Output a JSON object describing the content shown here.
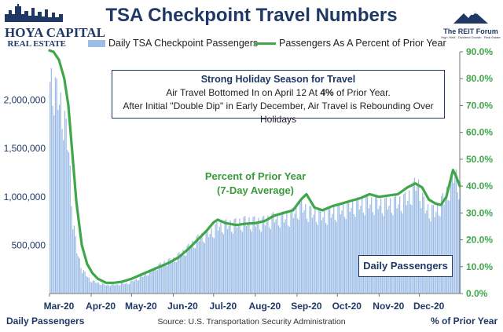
{
  "title": "TSA Checkpoint Travel Numbers",
  "logos": {
    "left_line1": "HOYA CAPITAL",
    "left_line2": "REAL ESTATE",
    "right_name": "The REIT Forum",
    "right_tagline": "High Yield · Dividend Growth · Real Estate"
  },
  "annotation": {
    "heading": "Strong Holiday Season for Travel",
    "line1_pre": "Air Travel Bottomed In on April 12 At ",
    "line1_bold": "4%",
    "line1_post": " of Prior Year.",
    "line2": "After Initial \"Double Dip\" in Early December, Air Travel is Rebounding Over Holidays"
  },
  "ppy_label": {
    "line1": "Percent of Prior Year",
    "line2": "(7-Day Average)"
  },
  "dp_label": "Daily Passengers",
  "footer": {
    "left": "Daily Passengers",
    "right": "% of Prior Year"
  },
  "source": "Source: U.S. Transportation Security Administration",
  "colors": {
    "bars": "#9dbde6",
    "line": "#3fa64a",
    "title": "#1f3864",
    "right_axis": "#3fa64a"
  },
  "chart_data": {
    "type": "bar",
    "x_start": "2020-03-01",
    "x_end": "2020-12-31",
    "xticks": [
      "Mar-20",
      "Apr-20",
      "May-20",
      "Jun-20",
      "Jul-20",
      "Aug-20",
      "Sep-20",
      "Oct-20",
      "Nov-20",
      "Dec-20"
    ],
    "y_left": {
      "ticks": [
        "0",
        "500,000",
        "1,000,000",
        "1,500,000",
        "2,000,000"
      ],
      "range": [
        0,
        2500000
      ]
    },
    "y_right": {
      "ticks": [
        "0.0%",
        "10.0%",
        "20.0%",
        "30.0%",
        "40.0%",
        "50.0%",
        "60.0%",
        "70.0%",
        "80.0%",
        "90.0%"
      ],
      "range": [
        0,
        0.9
      ]
    },
    "grid": false,
    "legend_position": "top",
    "series": [
      {
        "name": "Daily TSA Checkpoint Passengers",
        "kind": "bar",
        "axis": "left",
        "points": [
          [
            "2020-03-01",
            2280000
          ],
          [
            "2020-03-05",
            2130000
          ],
          [
            "2020-03-09",
            2000000
          ],
          [
            "2020-03-12",
            1800000
          ],
          [
            "2020-03-15",
            1520000
          ],
          [
            "2020-03-18",
            780000
          ],
          [
            "2020-03-21",
            450000
          ],
          [
            "2020-03-25",
            250000
          ],
          [
            "2020-03-31",
            140000
          ],
          [
            "2020-04-06",
            110000
          ],
          [
            "2020-04-12",
            90000
          ],
          [
            "2020-04-20",
            95000
          ],
          [
            "2020-04-28",
            110000
          ],
          [
            "2020-05-06",
            160000
          ],
          [
            "2020-05-14",
            230000
          ],
          [
            "2020-05-24",
            320000
          ],
          [
            "2020-06-01",
            360000
          ],
          [
            "2020-06-10",
            460000
          ],
          [
            "2020-06-20",
            590000
          ],
          [
            "2020-06-28",
            640000
          ],
          [
            "2020-07-05",
            720000
          ],
          [
            "2020-07-15",
            730000
          ],
          [
            "2020-07-25",
            760000
          ],
          [
            "2020-08-05",
            750000
          ],
          [
            "2020-08-15",
            800000
          ],
          [
            "2020-08-25",
            800000
          ],
          [
            "2020-09-04",
            920000
          ],
          [
            "2020-09-10",
            860000
          ],
          [
            "2020-09-20",
            820000
          ],
          [
            "2020-10-01",
            880000
          ],
          [
            "2020-10-15",
            940000
          ],
          [
            "2020-10-25",
            960000
          ],
          [
            "2020-11-05",
            940000
          ],
          [
            "2020-11-15",
            960000
          ],
          [
            "2020-11-22",
            1000000
          ],
          [
            "2020-11-29",
            1180000
          ],
          [
            "2020-12-05",
            900000
          ],
          [
            "2020-12-12",
            860000
          ],
          [
            "2020-12-19",
            1000000
          ],
          [
            "2020-12-23",
            1130000
          ],
          [
            "2020-12-27",
            1280000
          ],
          [
            "2020-12-31",
            1100000
          ]
        ]
      },
      {
        "name": "Passengers As A Percent of Prior Year",
        "kind": "line",
        "axis": "right",
        "points": [
          [
            "2020-03-01",
            0.905
          ],
          [
            "2020-03-04",
            0.9
          ],
          [
            "2020-03-08",
            0.87
          ],
          [
            "2020-03-12",
            0.8
          ],
          [
            "2020-03-15",
            0.7
          ],
          [
            "2020-03-18",
            0.52
          ],
          [
            "2020-03-21",
            0.34
          ],
          [
            "2020-03-25",
            0.18
          ],
          [
            "2020-03-29",
            0.11
          ],
          [
            "2020-04-02",
            0.075
          ],
          [
            "2020-04-06",
            0.055
          ],
          [
            "2020-04-12",
            0.04
          ],
          [
            "2020-04-18",
            0.04
          ],
          [
            "2020-04-24",
            0.044
          ],
          [
            "2020-05-01",
            0.055
          ],
          [
            "2020-05-08",
            0.07
          ],
          [
            "2020-05-15",
            0.085
          ],
          [
            "2020-05-22",
            0.1
          ],
          [
            "2020-05-29",
            0.115
          ],
          [
            "2020-06-05",
            0.135
          ],
          [
            "2020-06-12",
            0.165
          ],
          [
            "2020-06-19",
            0.2
          ],
          [
            "2020-06-26",
            0.235
          ],
          [
            "2020-07-01",
            0.265
          ],
          [
            "2020-07-04",
            0.275
          ],
          [
            "2020-07-10",
            0.262
          ],
          [
            "2020-07-18",
            0.255
          ],
          [
            "2020-07-25",
            0.26
          ],
          [
            "2020-08-01",
            0.262
          ],
          [
            "2020-08-08",
            0.27
          ],
          [
            "2020-08-15",
            0.29
          ],
          [
            "2020-08-22",
            0.3
          ],
          [
            "2020-08-29",
            0.31
          ],
          [
            "2020-09-04",
            0.35
          ],
          [
            "2020-09-08",
            0.37
          ],
          [
            "2020-09-14",
            0.32
          ],
          [
            "2020-09-20",
            0.31
          ],
          [
            "2020-09-27",
            0.325
          ],
          [
            "2020-10-04",
            0.335
          ],
          [
            "2020-10-11",
            0.345
          ],
          [
            "2020-10-18",
            0.355
          ],
          [
            "2020-10-25",
            0.37
          ],
          [
            "2020-11-01",
            0.36
          ],
          [
            "2020-11-08",
            0.365
          ],
          [
            "2020-11-15",
            0.37
          ],
          [
            "2020-11-22",
            0.395
          ],
          [
            "2020-11-28",
            0.41
          ],
          [
            "2020-12-03",
            0.395
          ],
          [
            "2020-12-08",
            0.35
          ],
          [
            "2020-12-13",
            0.335
          ],
          [
            "2020-12-17",
            0.33
          ],
          [
            "2020-12-21",
            0.36
          ],
          [
            "2020-12-24",
            0.42
          ],
          [
            "2020-12-26",
            0.46
          ],
          [
            "2020-12-28",
            0.44
          ],
          [
            "2020-12-31",
            0.4
          ]
        ]
      }
    ]
  }
}
